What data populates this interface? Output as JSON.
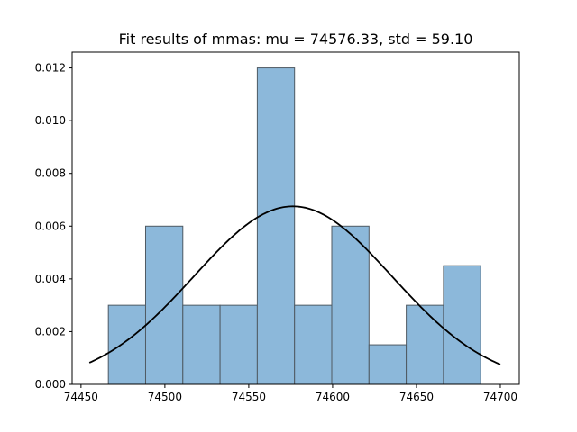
{
  "chart_data": {
    "type": "bar",
    "title": "Fit results of mmas: mu = 74576.33,  std = 59.10",
    "xlabel": "",
    "ylabel": "",
    "xlim": [
      74444.7,
      4711.3
    ],
    "ylim": [
      0,
      0.0126
    ],
    "x_ticks": [
      {
        "value": 74450,
        "label": "74450"
      },
      {
        "value": 74500,
        "label": "74500"
      },
      {
        "value": 74550,
        "label": "74550"
      },
      {
        "value": 74600,
        "label": "74600"
      },
      {
        "value": 74650,
        "label": "74650"
      },
      {
        "value": 74700,
        "label": "74700"
      }
    ],
    "y_ticks": [
      {
        "value": 0.0,
        "label": "0.000"
      },
      {
        "value": 0.002,
        "label": "0.002"
      },
      {
        "value": 0.004,
        "label": "0.004"
      },
      {
        "value": 0.006,
        "label": "0.006"
      },
      {
        "value": 0.008,
        "label": "0.008"
      },
      {
        "value": 0.01,
        "label": "0.010"
      },
      {
        "value": 0.012,
        "label": "0.012"
      }
    ],
    "bins": [
      {
        "x0": 74466.3,
        "x1": 74488.5,
        "density": 0.003
      },
      {
        "x0": 74488.5,
        "x1": 74510.7,
        "density": 0.006
      },
      {
        "x0": 74510.7,
        "x1": 74532.9,
        "density": 0.003
      },
      {
        "x0": 74532.9,
        "x1": 74555.1,
        "density": 0.003
      },
      {
        "x0": 74555.1,
        "x1": 74577.3,
        "density": 0.012
      },
      {
        "x0": 74577.3,
        "x1": 74599.5,
        "density": 0.003
      },
      {
        "x0": 74599.5,
        "x1": 74621.7,
        "density": 0.006
      },
      {
        "x0": 74621.7,
        "x1": 74643.9,
        "density": 0.0015
      },
      {
        "x0": 74643.9,
        "x1": 74666.1,
        "density": 0.003
      },
      {
        "x0": 74666.1,
        "x1": 74688.3,
        "density": 0.0045
      }
    ],
    "fit": {
      "type": "normal-pdf",
      "mu": 74576.33,
      "std": 59.1,
      "x_range": [
        74455,
        74700
      ]
    },
    "grid": false,
    "colors": {
      "bar_fill": "#8cb8da",
      "bar_edge": "#4f5a63",
      "fit_line": "#000000"
    }
  }
}
